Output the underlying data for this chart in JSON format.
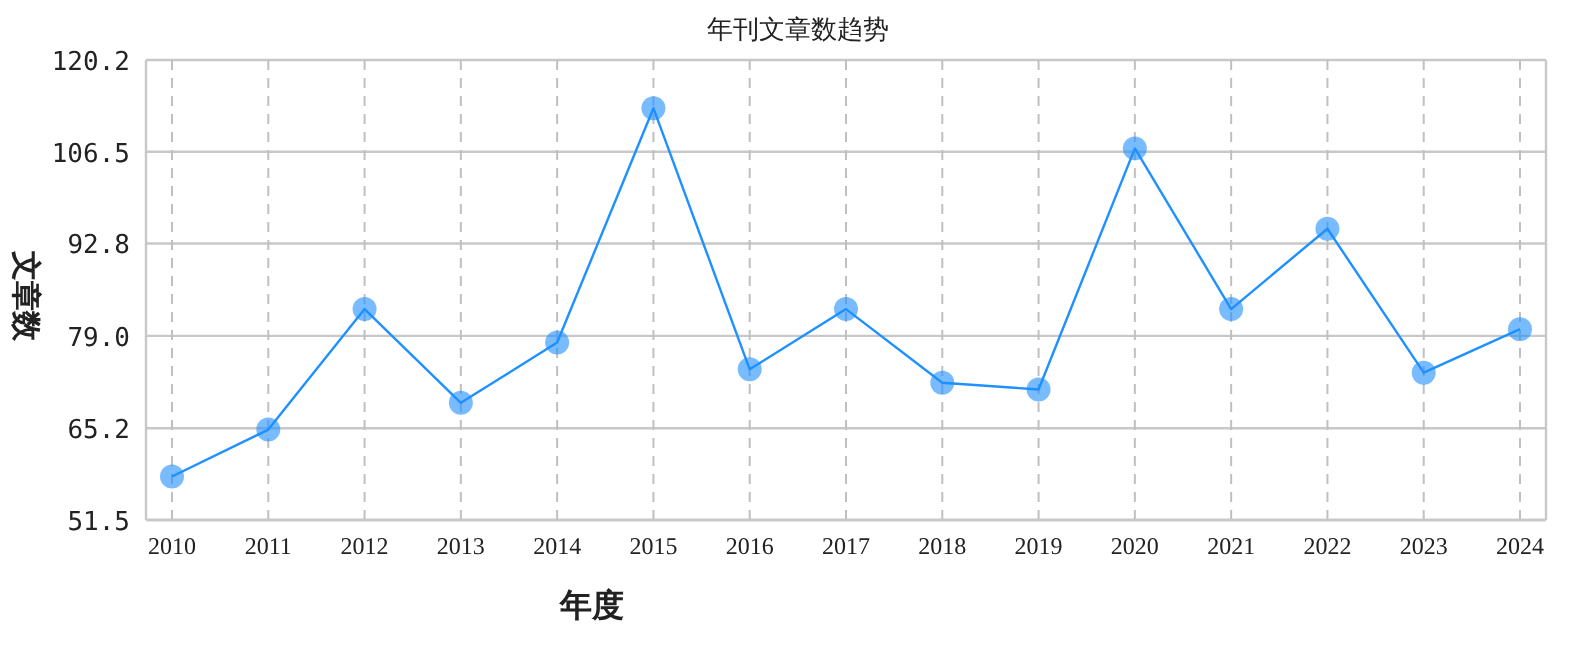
{
  "chart_data": {
    "type": "line",
    "title": "年刊文章数趋势",
    "xlabel": "年度",
    "ylabel": "文章数",
    "categories": [
      "2010",
      "2011",
      "2012",
      "2013",
      "2014",
      "2015",
      "2016",
      "2017",
      "2018",
      "2019",
      "2020",
      "2021",
      "2022",
      "2023",
      "2024"
    ],
    "series": [
      {
        "color": "#1e90ff",
        "values": [
          58,
          65,
          83,
          69,
          78,
          113,
          74,
          83,
          72,
          71,
          107,
          83,
          95,
          73.5,
          80
        ]
      }
    ],
    "ylim": [
      51.5,
      120.2
    ],
    "yticks": [
      {
        "value": 51.5,
        "label": "51.5"
      },
      {
        "value": 65.2,
        "label": "65.2"
      },
      {
        "value": 79.0,
        "label": "79.0"
      },
      {
        "value": 92.8,
        "label": "92.8"
      },
      {
        "value": 106.5,
        "label": "106.5"
      },
      {
        "value": 120.2,
        "label": "120.2"
      }
    ],
    "grid": true,
    "marker": "circle",
    "line_style": "solid"
  }
}
